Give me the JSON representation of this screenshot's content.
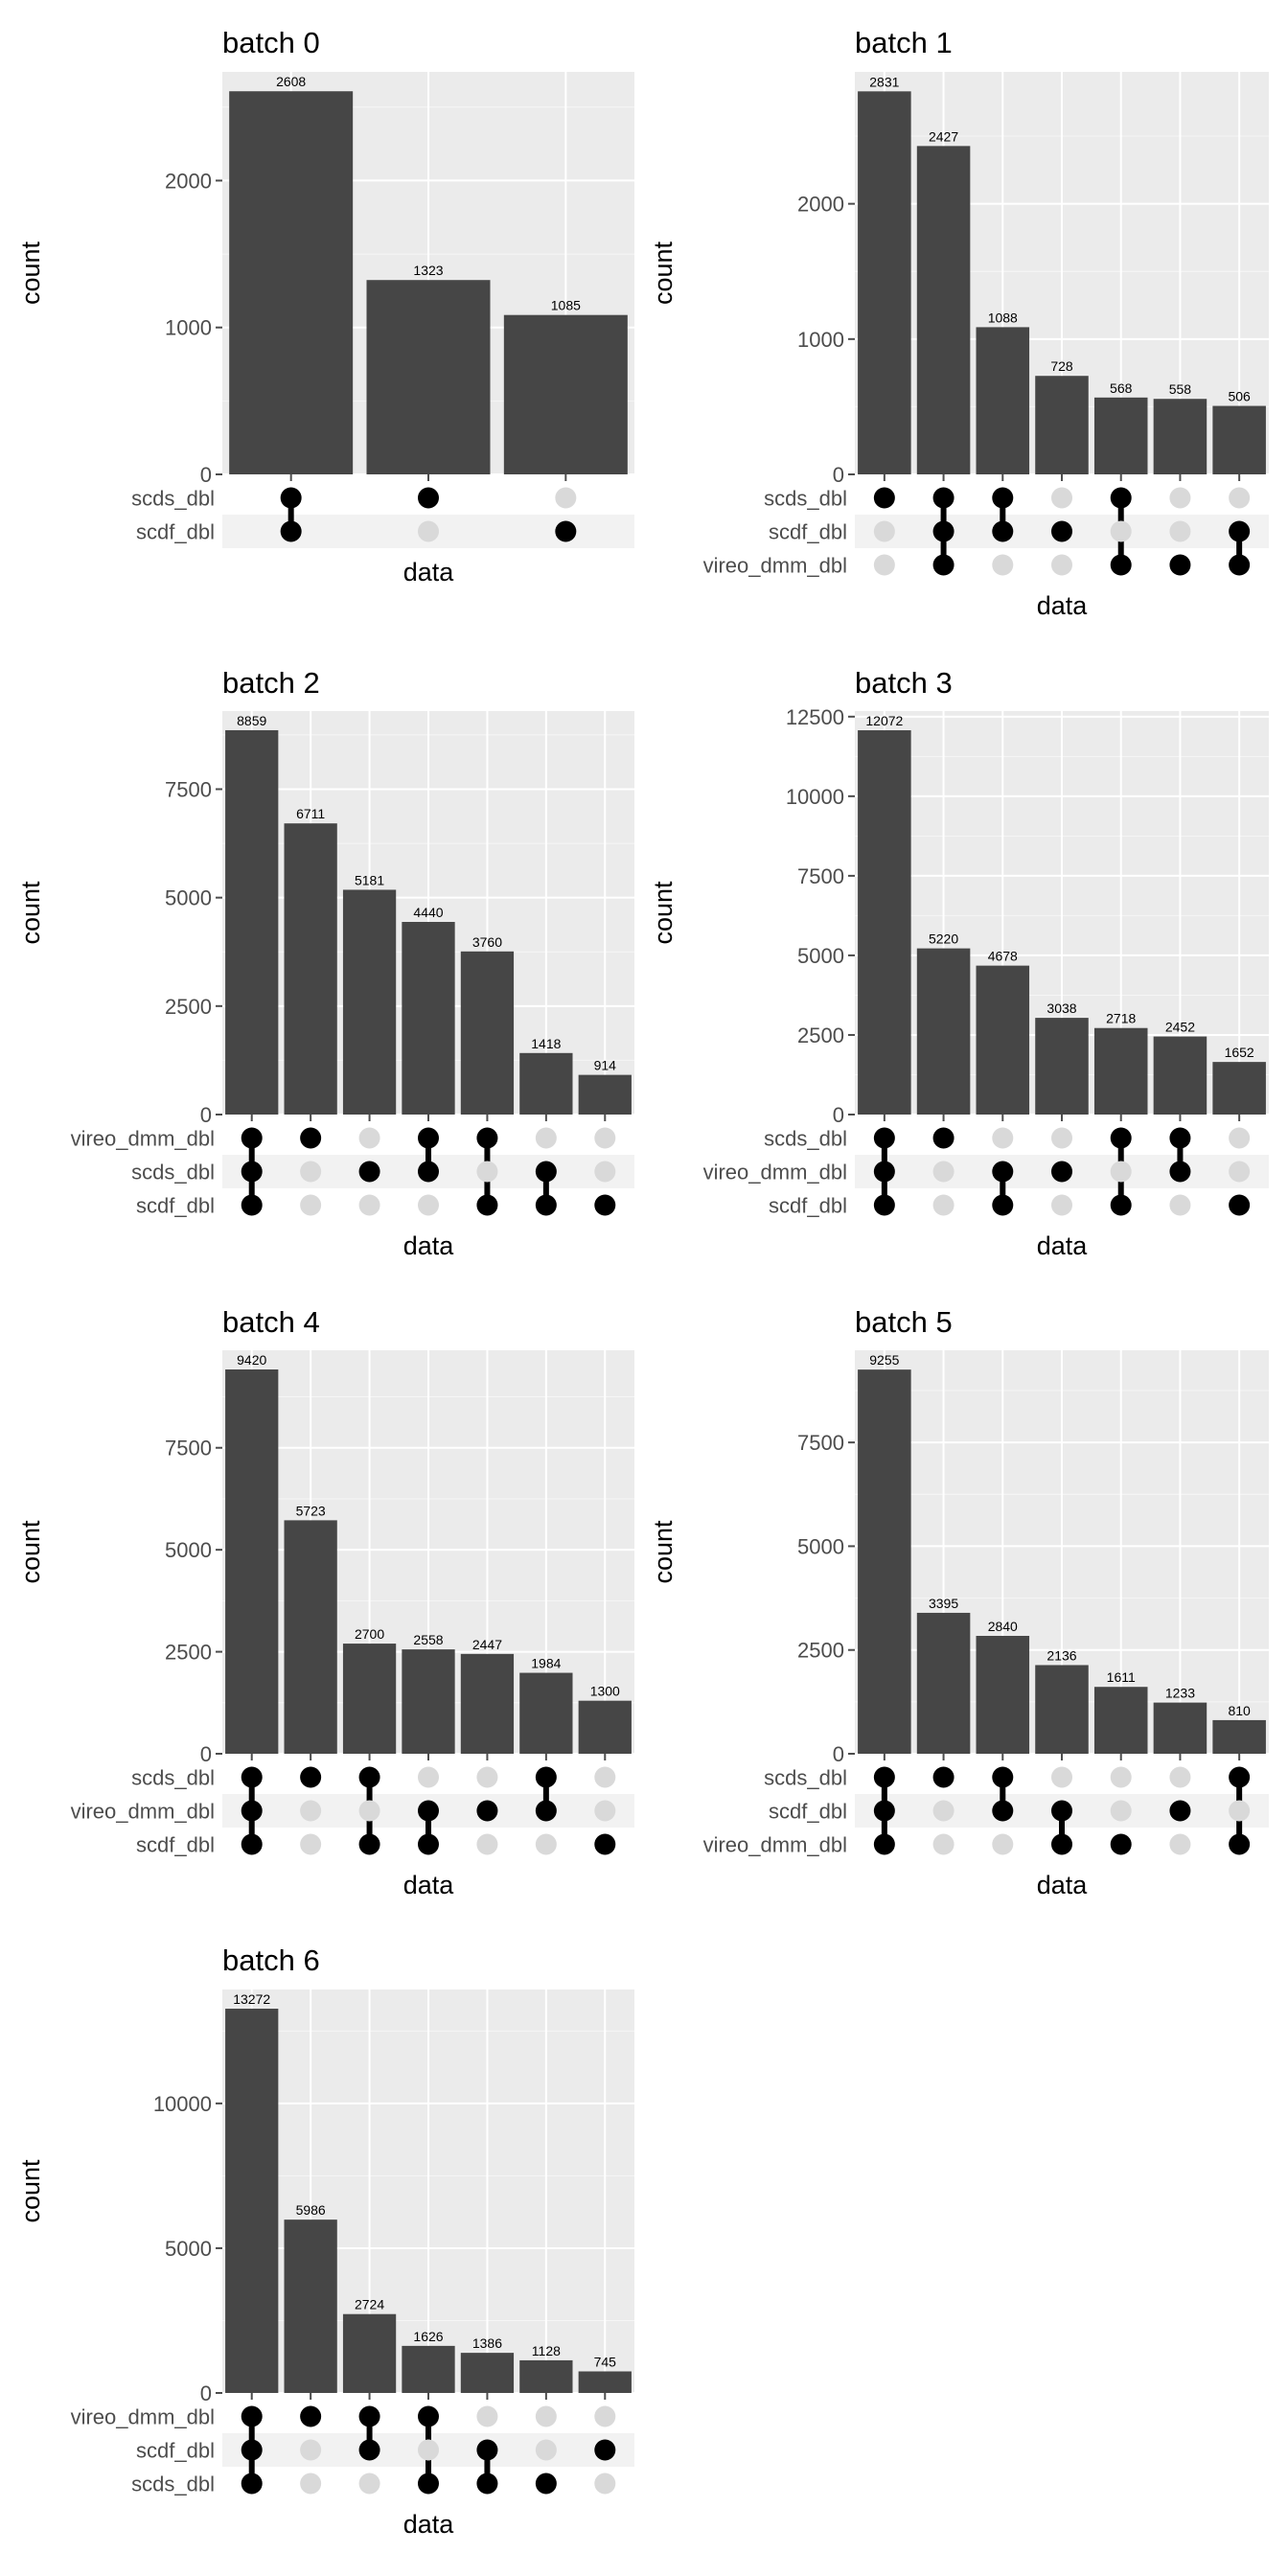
{
  "colors": {
    "panel_bg": "#ebebeb",
    "grid_major": "#ffffff",
    "bar": "#464646",
    "dot_on": "#000000",
    "dot_off": "#d9d9d9",
    "stripe": "#f2f2f2",
    "tick": "#4d4d4d"
  },
  "chart_data": [
    {
      "type": "bar",
      "title": "batch 0",
      "ylabel": "count",
      "xlabel": "data",
      "ylim": [
        0,
        2740
      ],
      "yticks": [
        0,
        1000,
        2000
      ],
      "sets": [
        "scds_dbl",
        "scdf_dbl"
      ],
      "values": [
        2608,
        1323,
        1085
      ],
      "combinations": [
        [
          "scds_dbl",
          "scdf_dbl"
        ],
        [
          "scds_dbl"
        ],
        [
          "scdf_dbl"
        ]
      ]
    },
    {
      "type": "bar",
      "title": "batch 1",
      "ylabel": "count",
      "xlabel": "data",
      "ylim": [
        0,
        2975
      ],
      "yticks": [
        0,
        1000,
        2000
      ],
      "sets": [
        "scds_dbl",
        "scdf_dbl",
        "vireo_dmm_dbl"
      ],
      "values": [
        2831,
        2427,
        1088,
        728,
        568,
        558,
        506
      ],
      "combinations": [
        [
          "scds_dbl"
        ],
        [
          "scds_dbl",
          "scdf_dbl",
          "vireo_dmm_dbl"
        ],
        [
          "scds_dbl",
          "scdf_dbl"
        ],
        [
          "scdf_dbl"
        ],
        [
          "scds_dbl",
          "vireo_dmm_dbl"
        ],
        [
          "vireo_dmm_dbl"
        ],
        [
          "scdf_dbl",
          "vireo_dmm_dbl"
        ]
      ]
    },
    {
      "type": "bar",
      "title": "batch 2",
      "ylabel": "count",
      "xlabel": "data",
      "ylim": [
        0,
        9300
      ],
      "yticks": [
        0,
        2500,
        5000,
        7500
      ],
      "sets": [
        "vireo_dmm_dbl",
        "scds_dbl",
        "scdf_dbl"
      ],
      "values": [
        8859,
        6711,
        5181,
        4440,
        3760,
        1418,
        914
      ],
      "combinations": [
        [
          "vireo_dmm_dbl",
          "scds_dbl",
          "scdf_dbl"
        ],
        [
          "vireo_dmm_dbl"
        ],
        [
          "scds_dbl"
        ],
        [
          "vireo_dmm_dbl",
          "scds_dbl"
        ],
        [
          "vireo_dmm_dbl",
          "scdf_dbl"
        ],
        [
          "scds_dbl",
          "scdf_dbl"
        ],
        [
          "scdf_dbl"
        ]
      ]
    },
    {
      "type": "bar",
      "title": "batch 3",
      "ylabel": "count",
      "xlabel": "data",
      "ylim": [
        0,
        12675
      ],
      "yticks": [
        0,
        2500,
        5000,
        7500,
        10000,
        12500
      ],
      "sets": [
        "scds_dbl",
        "vireo_dmm_dbl",
        "scdf_dbl"
      ],
      "values": [
        12072,
        5220,
        4678,
        3038,
        2718,
        2452,
        1652
      ],
      "combinations": [
        [
          "scds_dbl",
          "vireo_dmm_dbl",
          "scdf_dbl"
        ],
        [
          "scds_dbl"
        ],
        [
          "vireo_dmm_dbl",
          "scdf_dbl"
        ],
        [
          "vireo_dmm_dbl"
        ],
        [
          "scds_dbl",
          "scdf_dbl"
        ],
        [
          "scds_dbl",
          "vireo_dmm_dbl"
        ],
        [
          "scdf_dbl"
        ]
      ]
    },
    {
      "type": "bar",
      "title": "batch 4",
      "ylabel": "count",
      "xlabel": "data",
      "ylim": [
        0,
        9890
      ],
      "yticks": [
        0,
        2500,
        5000,
        7500
      ],
      "sets": [
        "scds_dbl",
        "vireo_dmm_dbl",
        "scdf_dbl"
      ],
      "values": [
        9420,
        5723,
        2700,
        2558,
        2447,
        1984,
        1300
      ],
      "combinations": [
        [
          "scds_dbl",
          "vireo_dmm_dbl",
          "scdf_dbl"
        ],
        [
          "scds_dbl"
        ],
        [
          "scds_dbl",
          "scdf_dbl"
        ],
        [
          "vireo_dmm_dbl",
          "scdf_dbl"
        ],
        [
          "vireo_dmm_dbl"
        ],
        [
          "scds_dbl",
          "vireo_dmm_dbl"
        ],
        [
          "scdf_dbl"
        ]
      ]
    },
    {
      "type": "bar",
      "title": "batch 5",
      "ylabel": "count",
      "xlabel": "data",
      "ylim": [
        0,
        9720
      ],
      "yticks": [
        0,
        2500,
        5000,
        7500
      ],
      "sets": [
        "scds_dbl",
        "scdf_dbl",
        "vireo_dmm_dbl"
      ],
      "values": [
        9255,
        3395,
        2840,
        2136,
        1611,
        1233,
        810
      ],
      "combinations": [
        [
          "scds_dbl",
          "scdf_dbl",
          "vireo_dmm_dbl"
        ],
        [
          "scds_dbl"
        ],
        [
          "scds_dbl",
          "scdf_dbl"
        ],
        [
          "scdf_dbl",
          "vireo_dmm_dbl"
        ],
        [
          "vireo_dmm_dbl"
        ],
        [
          "scdf_dbl"
        ],
        [
          "scds_dbl",
          "vireo_dmm_dbl"
        ]
      ]
    },
    {
      "type": "bar",
      "title": "batch 6",
      "ylabel": "count",
      "xlabel": "data",
      "ylim": [
        0,
        13935
      ],
      "yticks": [
        0,
        5000,
        10000
      ],
      "sets": [
        "vireo_dmm_dbl",
        "scdf_dbl",
        "scds_dbl"
      ],
      "values": [
        13272,
        5986,
        2724,
        1626,
        1386,
        1128,
        745
      ],
      "combinations": [
        [
          "vireo_dmm_dbl",
          "scdf_dbl",
          "scds_dbl"
        ],
        [
          "vireo_dmm_dbl"
        ],
        [
          "vireo_dmm_dbl",
          "scdf_dbl"
        ],
        [
          "vireo_dmm_dbl",
          "scds_dbl"
        ],
        [
          "scdf_dbl",
          "scds_dbl"
        ],
        [
          "scds_dbl"
        ],
        [
          "scdf_dbl"
        ]
      ]
    }
  ]
}
